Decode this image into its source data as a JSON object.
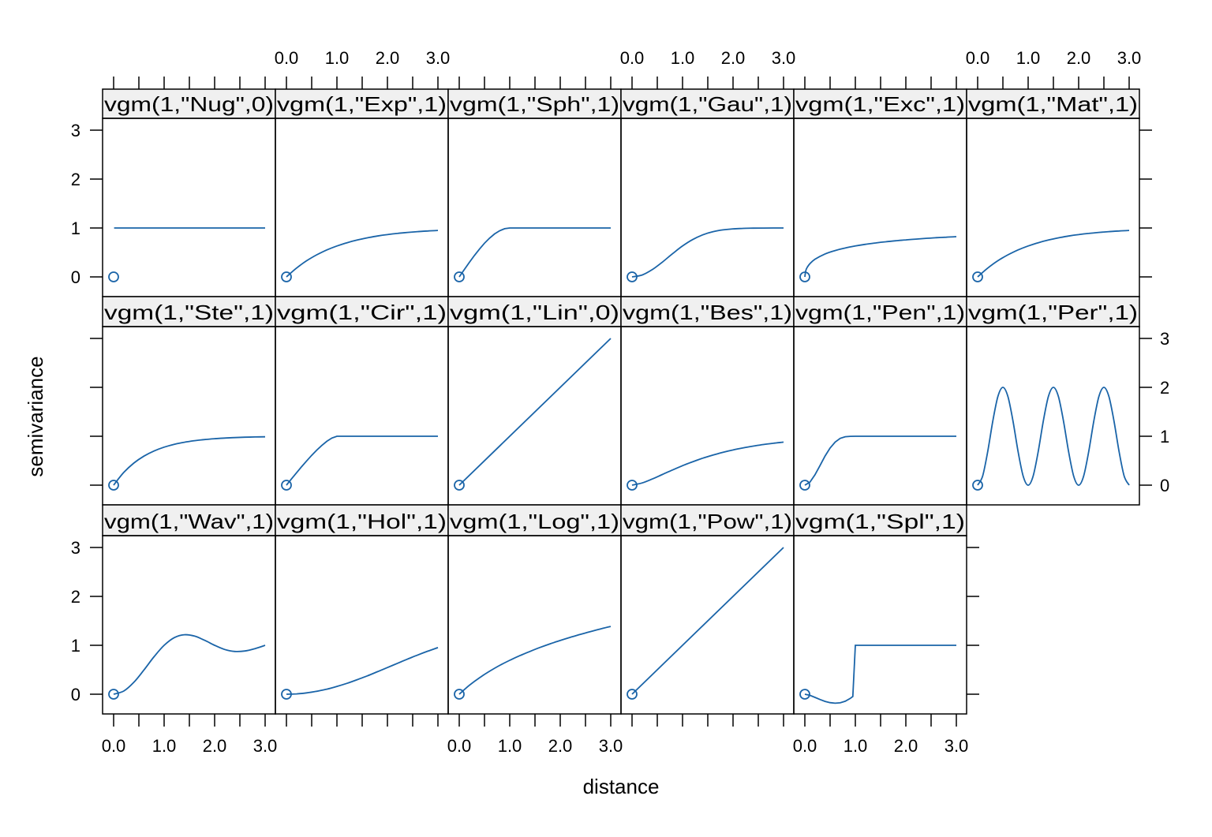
{
  "chart_data": {
    "type": "line",
    "layout": "lattice trellis, 6 columns x 3 rows",
    "xlabel": "distance",
    "ylabel": "semivariance",
    "xlim": [
      -0.2,
      3.2
    ],
    "ylim": [
      -0.4,
      3.25
    ],
    "x_ticks": [
      0,
      0.5,
      1,
      1.5,
      2,
      2.5,
      3
    ],
    "x_tick_labels": [
      "0.0",
      "1.0",
      "2.0",
      "3.0"
    ],
    "x_tick_label_values": [
      0,
      1,
      2,
      3
    ],
    "y_ticks": [
      0,
      1,
      2,
      3
    ],
    "y_tick_labels": [
      "0",
      "1",
      "2",
      "3"
    ],
    "grid": false,
    "line_color": "#1a64a8",
    "strip_color": "#f0f0f0",
    "origin_marker": {
      "x": 0,
      "y": 0,
      "shape": "open-circle"
    },
    "x": [
      0,
      0.2,
      0.4,
      0.6,
      0.8,
      1.0,
      1.2,
      1.4,
      1.6,
      1.8,
      2.0,
      2.2,
      2.4,
      2.6,
      2.8,
      3.0
    ],
    "panels": [
      {
        "title": "vgm(1,\"Nug\",0)",
        "smooth": false,
        "x": [
          0.01,
          3.0
        ],
        "values": [
          1,
          1
        ]
      },
      {
        "title": "vgm(1,\"Exp\",1)",
        "smooth": true,
        "values": [
          0,
          0.181,
          0.33,
          0.451,
          0.551,
          0.632,
          0.699,
          0.753,
          0.798,
          0.835,
          0.865,
          0.889,
          0.909,
          0.926,
          0.939,
          0.95
        ]
      },
      {
        "title": "vgm(1,\"Sph\",1)",
        "smooth": false,
        "x": [
          0,
          0.1,
          0.2,
          0.3,
          0.4,
          0.5,
          0.6,
          0.7,
          0.8,
          0.9,
          1.0,
          3.0
        ],
        "values": [
          0,
          0.15,
          0.296,
          0.437,
          0.568,
          0.688,
          0.792,
          0.879,
          0.944,
          0.986,
          1,
          1
        ]
      },
      {
        "title": "vgm(1,\"Gau\",1)",
        "smooth": true,
        "values": [
          0,
          0.039,
          0.148,
          0.302,
          0.473,
          0.632,
          0.763,
          0.859,
          0.923,
          0.961,
          0.982,
          0.992,
          0.997,
          0.999,
          1,
          1
        ]
      },
      {
        "title": "vgm(1,\"Exc\",1)",
        "smooth": true,
        "x": [
          0,
          0.02,
          0.05,
          0.1,
          0.2,
          0.4,
          0.6,
          0.8,
          1.0,
          1.2,
          1.4,
          1.6,
          1.8,
          2.0,
          2.2,
          2.4,
          2.6,
          2.8,
          3.0
        ],
        "values": [
          0,
          0.132,
          0.2,
          0.271,
          0.361,
          0.469,
          0.539,
          0.591,
          0.632,
          0.666,
          0.694,
          0.718,
          0.739,
          0.757,
          0.773,
          0.788,
          0.801,
          0.812,
          0.823
        ]
      },
      {
        "title": "vgm(1,\"Mat\",1)",
        "smooth": true,
        "values": [
          0,
          0.181,
          0.33,
          0.451,
          0.551,
          0.632,
          0.699,
          0.753,
          0.798,
          0.835,
          0.865,
          0.889,
          0.909,
          0.926,
          0.939,
          0.95
        ]
      },
      {
        "title": "vgm(1,\"Ste\",1)",
        "smooth": true,
        "values": [
          0,
          0.259,
          0.451,
          0.593,
          0.699,
          0.777,
          0.835,
          0.878,
          0.909,
          0.933,
          0.95,
          0.963,
          0.973,
          0.98,
          0.985,
          0.989
        ]
      },
      {
        "title": "vgm(1,\"Cir\",1)",
        "smooth": false,
        "x": [
          0,
          0.1,
          0.2,
          0.3,
          0.4,
          0.5,
          0.6,
          0.7,
          0.8,
          0.9,
          1.0,
          3.0
        ],
        "values": [
          0,
          0.127,
          0.253,
          0.377,
          0.495,
          0.609,
          0.716,
          0.812,
          0.896,
          0.963,
          1,
          1
        ]
      },
      {
        "title": "vgm(1,\"Lin\",0)",
        "smooth": false,
        "x": [
          0,
          3.0
        ],
        "values": [
          0,
          3
        ]
      },
      {
        "title": "vgm(1,\"Bes\",1)",
        "smooth": true,
        "values": [
          0,
          0.045,
          0.126,
          0.218,
          0.31,
          0.398,
          0.478,
          0.551,
          0.614,
          0.671,
          0.72,
          0.762,
          0.799,
          0.83,
          0.857,
          0.88
        ]
      },
      {
        "title": "vgm(1,\"Pen\",1)",
        "smooth": false,
        "x": [
          0,
          0.1,
          0.2,
          0.3,
          0.4,
          0.5,
          0.6,
          0.7,
          0.8,
          0.9,
          1.0,
          3.0
        ],
        "values": [
          0,
          0.061,
          0.211,
          0.4,
          0.595,
          0.76,
          0.881,
          0.956,
          0.99,
          0.999,
          1,
          1
        ]
      },
      {
        "title": "vgm(1,\"Per\",1)",
        "smooth": true,
        "x": [
          0,
          0.1,
          0.2,
          0.3,
          0.4,
          0.5,
          0.6,
          0.7,
          0.8,
          0.9,
          1.0,
          1.1,
          1.2,
          1.3,
          1.4,
          1.5,
          1.6,
          1.7,
          1.8,
          1.9,
          2.0,
          2.1,
          2.2,
          2.3,
          2.4,
          2.5,
          2.6,
          2.7,
          2.8,
          2.9,
          3.0
        ],
        "values": [
          0,
          0.191,
          0.691,
          1.309,
          1.809,
          2,
          1.809,
          1.309,
          0.691,
          0.191,
          0,
          0.191,
          0.691,
          1.309,
          1.809,
          2,
          1.809,
          1.309,
          0.691,
          0.191,
          0,
          0.191,
          0.691,
          1.309,
          1.809,
          2,
          1.809,
          1.309,
          0.691,
          0.191,
          0
        ]
      },
      {
        "title": "vgm(1,\"Wav\",1)",
        "smooth": true,
        "values": [
          0,
          0.064,
          0.243,
          0.495,
          0.766,
          1,
          1.156,
          1.216,
          1.189,
          1.104,
          1,
          0.915,
          0.874,
          0.884,
          0.933,
          1
        ]
      },
      {
        "title": "vgm(1,\"Hol\",1)",
        "smooth": true,
        "values": [
          0,
          0.007,
          0.027,
          0.059,
          0.103,
          0.159,
          0.223,
          0.296,
          0.375,
          0.459,
          0.545,
          0.633,
          0.719,
          0.802,
          0.88,
          0.953
        ]
      },
      {
        "title": "vgm(1,\"Log\",1)",
        "smooth": true,
        "values": [
          0,
          0.182,
          0.336,
          0.47,
          0.588,
          0.693,
          0.788,
          0.875,
          0.956,
          1.03,
          1.099,
          1.163,
          1.224,
          1.281,
          1.335,
          1.386
        ]
      },
      {
        "title": "vgm(1,\"Pow\",1)",
        "smooth": false,
        "x": [
          0,
          3.0
        ],
        "values": [
          0,
          3
        ]
      },
      {
        "title": "vgm(1,\"Spl\",1)",
        "smooth": false,
        "x": [
          0,
          0.1,
          0.2,
          0.3,
          0.4,
          0.5,
          0.6,
          0.7,
          0.8,
          0.9,
          0.95,
          1.0,
          3.0
        ],
        "values": [
          0,
          -0.023,
          -0.064,
          -0.108,
          -0.147,
          -0.173,
          -0.184,
          -0.175,
          -0.143,
          -0.085,
          -0.046,
          1,
          1
        ]
      }
    ]
  }
}
